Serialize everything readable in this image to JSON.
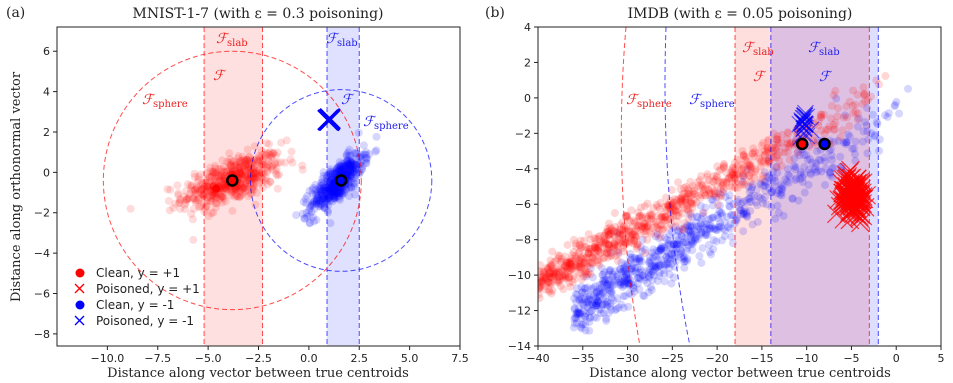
{
  "chart_data": [
    {
      "panel_label": "(a)",
      "type": "scatter",
      "title": "MNIST-1-7 (with ε = 0.3 poisoning)",
      "xlabel": "Distance along vector between true centroids",
      "ylabel": "Distance along orthonormal vector",
      "xlim": [
        -12.5,
        7.5
      ],
      "ylim": [
        -8.6,
        7.2
      ],
      "xticks": [
        -10.0,
        -7.5,
        -5.0,
        -2.5,
        0.0,
        2.5,
        5.0,
        7.5
      ],
      "xtick_labels": [
        "−10.0",
        "−7.5",
        "−5.0",
        "−2.5",
        "0.0",
        "2.5",
        "5.0",
        "7.5"
      ],
      "yticks": [
        -8,
        -6,
        -4,
        -2,
        0,
        2,
        4,
        6
      ],
      "ytick_labels": [
        "−8",
        "−6",
        "−4",
        "−2",
        "0",
        "2",
        "4",
        "6"
      ],
      "grid": false,
      "legend_position": "lower-left",
      "legend": [
        "Clean, y = +1",
        "Poisoned, y = +1",
        "Clean, y = -1",
        "Poisoned, y = -1"
      ],
      "colors": {
        "positive": "#ff0000",
        "negative": "#0000ff"
      },
      "centroids": [
        {
          "class": "+1",
          "x": -3.8,
          "y": -0.4
        },
        {
          "class": "-1",
          "x": 1.6,
          "y": -0.4
        }
      ],
      "poison_points": [
        {
          "class": "-1",
          "x": 1.0,
          "y": 2.6
        }
      ],
      "clusters": [
        {
          "class": "+1",
          "center": [
            -3.8,
            -0.4
          ],
          "extent_x": [
            -7.5,
            0.5
          ],
          "extent_y": [
            -1.8,
            2.0
          ]
        },
        {
          "class": "-1",
          "center": [
            1.6,
            -0.4
          ],
          "extent_x": [
            -1.2,
            2.6
          ],
          "extent_y": [
            -2.2,
            1.2
          ]
        }
      ],
      "sphere_circles": [
        {
          "class": "+1",
          "center": [
            -3.8,
            -0.4
          ],
          "radius": 6.4
        },
        {
          "class": "-1",
          "center": [
            1.6,
            -0.4
          ],
          "radius": 4.5
        }
      ],
      "slab_regions": [
        {
          "class": "+1",
          "x_range": [
            -5.2,
            -2.3
          ]
        },
        {
          "class": "-1",
          "x_range": [
            0.9,
            2.5
          ]
        }
      ],
      "annotations": [
        {
          "text": "F_slab",
          "color": "red"
        },
        {
          "text": "F",
          "color": "red"
        },
        {
          "text": "F_sphere",
          "color": "red"
        },
        {
          "text": "F_slab",
          "color": "blue"
        },
        {
          "text": "F",
          "color": "blue"
        },
        {
          "text": "F_sphere",
          "color": "blue"
        }
      ]
    },
    {
      "panel_label": "(b)",
      "type": "scatter",
      "title": "IMDB (with ε = 0.05 poisoning)",
      "xlabel": "Distance along vector between true centroids",
      "ylabel": "",
      "xlim": [
        -40,
        5
      ],
      "ylim": [
        -14,
        4
      ],
      "xticks": [
        -40,
        -35,
        -30,
        -25,
        -20,
        -15,
        -10,
        -5,
        0,
        5
      ],
      "xtick_labels": [
        "−40",
        "−35",
        "−30",
        "−25",
        "−20",
        "−15",
        "−10",
        "−5",
        "0",
        "5"
      ],
      "yticks": [
        -14,
        -12,
        -10,
        -8,
        -6,
        -4,
        -2,
        0,
        2,
        4
      ],
      "ytick_labels": [
        "−14",
        "−12",
        "−10",
        "−8",
        "−6",
        "−4",
        "−2",
        "0",
        "2",
        "4"
      ],
      "grid": false,
      "colors": {
        "positive": "#ff0000",
        "negative": "#0000ff"
      },
      "centroids": [
        {
          "class": "+1",
          "x": -10.5,
          "y": -2.6
        },
        {
          "class": "-1",
          "x": -8.0,
          "y": -2.6
        }
      ],
      "clusters": [
        {
          "class": "+1",
          "line_from": [
            -40,
            -10.5
          ],
          "line_to": [
            -1,
            0.5
          ]
        },
        {
          "class": "-1",
          "line_from": [
            -36,
            -12.0
          ],
          "line_to": [
            3,
            0.0
          ]
        }
      ],
      "poison_clusters": [
        {
          "class": "+1",
          "center": [
            -4.8,
            -5.5
          ],
          "spread": [
            0.9,
            0.9
          ]
        },
        {
          "class": "-1",
          "center": [
            -10.3,
            -1.5
          ],
          "spread": [
            0.4,
            0.5
          ]
        }
      ],
      "slab_regions": [
        {
          "class": "+1",
          "x_range": [
            -18.0,
            -3.0
          ]
        },
        {
          "class": "-1",
          "x_range": [
            -14.0,
            -2.0
          ]
        }
      ],
      "annotations": [
        {
          "text": "F_slab",
          "color": "red"
        },
        {
          "text": "F",
          "color": "red"
        },
        {
          "text": "F_sphere",
          "color": "red"
        },
        {
          "text": "F_slab",
          "color": "blue"
        },
        {
          "text": "F",
          "color": "blue"
        },
        {
          "text": "F_sphere",
          "color": "blue"
        }
      ]
    }
  ]
}
